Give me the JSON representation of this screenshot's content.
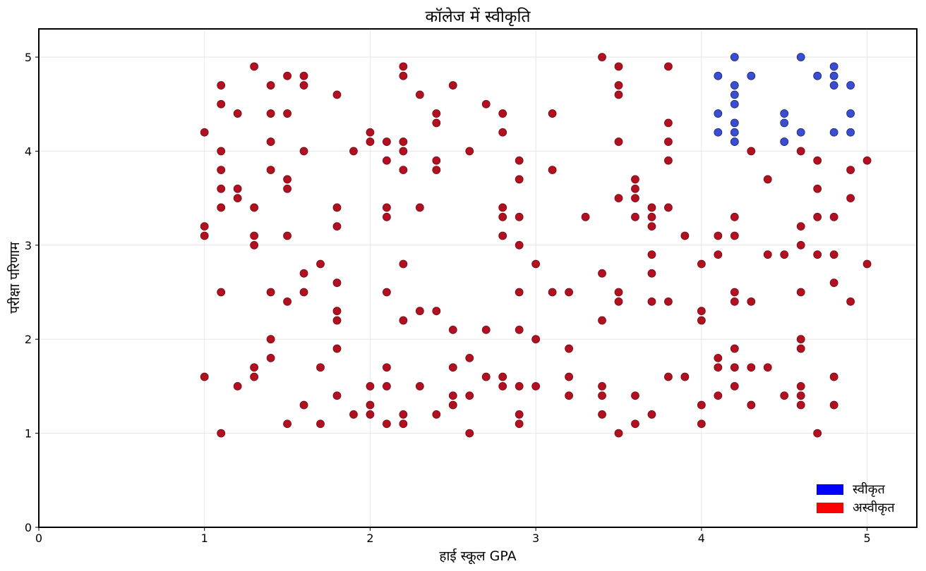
{
  "chart_data": {
    "type": "scatter",
    "title": "कॉलेज में स्वीकृति",
    "xlabel": "हाई स्कूल GPA",
    "ylabel": "परीक्षा परिणाम",
    "xlim": [
      0,
      5.3
    ],
    "ylim": [
      0,
      5.3
    ],
    "x_ticks": [
      0,
      1,
      2,
      3,
      4,
      5
    ],
    "y_ticks": [
      0,
      1,
      2,
      3,
      4,
      5
    ],
    "grid": true,
    "legend_position": "bottom-right",
    "series": [
      {
        "name": "स्वीकृत",
        "color": "#0000ff",
        "marker_color": "#3a4fd0",
        "points": [
          [
            4.1,
            4.8
          ],
          [
            4.1,
            4.4
          ],
          [
            4.1,
            4.2
          ],
          [
            4.2,
            5.0
          ],
          [
            4.2,
            4.7
          ],
          [
            4.2,
            4.6
          ],
          [
            4.2,
            4.5
          ],
          [
            4.2,
            4.3
          ],
          [
            4.2,
            4.2
          ],
          [
            4.2,
            4.1
          ],
          [
            4.3,
            4.8
          ],
          [
            4.5,
            4.4
          ],
          [
            4.5,
            4.3
          ],
          [
            4.5,
            4.1
          ],
          [
            4.6,
            5.0
          ],
          [
            4.6,
            4.2
          ],
          [
            4.7,
            4.8
          ],
          [
            4.8,
            4.9
          ],
          [
            4.8,
            4.8
          ],
          [
            4.8,
            4.7
          ],
          [
            4.8,
            4.2
          ],
          [
            4.9,
            4.7
          ],
          [
            4.9,
            4.4
          ],
          [
            4.9,
            4.2
          ]
        ]
      },
      {
        "name": "अस्वीकृत",
        "color": "#ff0000",
        "marker_color": "#b01020",
        "points": [
          [
            1.0,
            4.2
          ],
          [
            1.0,
            3.2
          ],
          [
            1.0,
            3.1
          ],
          [
            1.0,
            1.6
          ],
          [
            1.1,
            4.7
          ],
          [
            1.1,
            4.5
          ],
          [
            1.1,
            4.0
          ],
          [
            1.1,
            3.8
          ],
          [
            1.1,
            3.6
          ],
          [
            1.1,
            3.4
          ],
          [
            1.1,
            2.5
          ],
          [
            1.1,
            1.0
          ],
          [
            1.2,
            4.4
          ],
          [
            1.2,
            3.6
          ],
          [
            1.2,
            3.5
          ],
          [
            1.2,
            1.5
          ],
          [
            1.3,
            4.9
          ],
          [
            1.3,
            3.4
          ],
          [
            1.3,
            3.1
          ],
          [
            1.3,
            3.0
          ],
          [
            1.3,
            1.7
          ],
          [
            1.3,
            1.6
          ],
          [
            1.4,
            4.7
          ],
          [
            1.4,
            4.4
          ],
          [
            1.4,
            4.1
          ],
          [
            1.4,
            3.8
          ],
          [
            1.4,
            2.5
          ],
          [
            1.4,
            2.0
          ],
          [
            1.4,
            1.8
          ],
          [
            1.5,
            4.8
          ],
          [
            1.5,
            4.4
          ],
          [
            1.5,
            3.7
          ],
          [
            1.5,
            3.6
          ],
          [
            1.5,
            3.1
          ],
          [
            1.5,
            2.4
          ],
          [
            1.5,
            1.1
          ],
          [
            1.6,
            4.8
          ],
          [
            1.6,
            4.7
          ],
          [
            1.6,
            4.0
          ],
          [
            1.6,
            2.7
          ],
          [
            1.6,
            2.5
          ],
          [
            1.6,
            1.3
          ],
          [
            1.7,
            2.8
          ],
          [
            1.7,
            1.7
          ],
          [
            1.7,
            1.1
          ],
          [
            1.8,
            4.6
          ],
          [
            1.8,
            3.4
          ],
          [
            1.8,
            3.2
          ],
          [
            1.8,
            2.6
          ],
          [
            1.8,
            2.3
          ],
          [
            1.8,
            2.2
          ],
          [
            1.8,
            1.9
          ],
          [
            1.8,
            1.4
          ],
          [
            1.9,
            4.0
          ],
          [
            1.9,
            1.2
          ],
          [
            2.0,
            4.2
          ],
          [
            2.0,
            4.1
          ],
          [
            2.0,
            1.5
          ],
          [
            2.0,
            1.3
          ],
          [
            2.0,
            1.2
          ],
          [
            2.1,
            4.1
          ],
          [
            2.1,
            3.9
          ],
          [
            2.1,
            3.4
          ],
          [
            2.1,
            3.3
          ],
          [
            2.1,
            2.5
          ],
          [
            2.1,
            1.7
          ],
          [
            2.1,
            1.5
          ],
          [
            2.1,
            1.1
          ],
          [
            2.2,
            4.9
          ],
          [
            2.2,
            4.8
          ],
          [
            2.2,
            4.1
          ],
          [
            2.2,
            4.0
          ],
          [
            2.2,
            3.8
          ],
          [
            2.2,
            2.8
          ],
          [
            2.2,
            2.2
          ],
          [
            2.2,
            1.2
          ],
          [
            2.2,
            1.1
          ],
          [
            2.3,
            4.6
          ],
          [
            2.3,
            3.4
          ],
          [
            2.3,
            2.3
          ],
          [
            2.3,
            1.5
          ],
          [
            2.4,
            4.4
          ],
          [
            2.4,
            4.3
          ],
          [
            2.4,
            3.9
          ],
          [
            2.4,
            3.8
          ],
          [
            2.4,
            2.3
          ],
          [
            2.4,
            1.2
          ],
          [
            2.5,
            4.7
          ],
          [
            2.5,
            2.1
          ],
          [
            2.5,
            1.7
          ],
          [
            2.5,
            1.4
          ],
          [
            2.5,
            1.3
          ],
          [
            2.6,
            4.0
          ],
          [
            2.6,
            1.8
          ],
          [
            2.6,
            1.4
          ],
          [
            2.6,
            1.0
          ],
          [
            2.7,
            4.5
          ],
          [
            2.7,
            2.1
          ],
          [
            2.7,
            1.6
          ],
          [
            2.8,
            4.4
          ],
          [
            2.8,
            4.2
          ],
          [
            2.8,
            3.4
          ],
          [
            2.8,
            3.3
          ],
          [
            2.8,
            3.1
          ],
          [
            2.8,
            1.6
          ],
          [
            2.8,
            1.5
          ],
          [
            2.9,
            3.9
          ],
          [
            2.9,
            3.7
          ],
          [
            2.9,
            3.3
          ],
          [
            2.9,
            3.0
          ],
          [
            2.9,
            2.5
          ],
          [
            2.9,
            2.1
          ],
          [
            2.9,
            1.5
          ],
          [
            2.9,
            1.2
          ],
          [
            2.9,
            1.1
          ],
          [
            3.0,
            2.8
          ],
          [
            3.0,
            2.0
          ],
          [
            3.0,
            1.5
          ],
          [
            3.1,
            4.4
          ],
          [
            3.1,
            3.8
          ],
          [
            3.1,
            2.5
          ],
          [
            3.2,
            2.5
          ],
          [
            3.2,
            1.9
          ],
          [
            3.2,
            1.6
          ],
          [
            3.2,
            1.4
          ],
          [
            3.3,
            3.3
          ],
          [
            3.4,
            5.0
          ],
          [
            3.4,
            2.7
          ],
          [
            3.4,
            2.2
          ],
          [
            3.4,
            1.5
          ],
          [
            3.4,
            1.4
          ],
          [
            3.4,
            1.2
          ],
          [
            3.5,
            4.9
          ],
          [
            3.5,
            4.7
          ],
          [
            3.5,
            4.6
          ],
          [
            3.5,
            4.1
          ],
          [
            3.5,
            3.5
          ],
          [
            3.5,
            2.5
          ],
          [
            3.5,
            2.4
          ],
          [
            3.5,
            1.0
          ],
          [
            3.6,
            3.7
          ],
          [
            3.6,
            3.6
          ],
          [
            3.6,
            3.5
          ],
          [
            3.6,
            3.3
          ],
          [
            3.6,
            1.4
          ],
          [
            3.6,
            1.1
          ],
          [
            3.7,
            3.4
          ],
          [
            3.7,
            3.3
          ],
          [
            3.7,
            3.2
          ],
          [
            3.7,
            2.9
          ],
          [
            3.7,
            2.7
          ],
          [
            3.7,
            2.4
          ],
          [
            3.7,
            1.2
          ],
          [
            3.8,
            4.9
          ],
          [
            3.8,
            4.3
          ],
          [
            3.8,
            4.1
          ],
          [
            3.8,
            3.9
          ],
          [
            3.8,
            3.4
          ],
          [
            3.8,
            2.4
          ],
          [
            3.8,
            1.6
          ],
          [
            3.9,
            3.1
          ],
          [
            3.9,
            1.6
          ],
          [
            4.0,
            2.8
          ],
          [
            4.0,
            2.3
          ],
          [
            4.0,
            2.2
          ],
          [
            4.0,
            1.3
          ],
          [
            4.0,
            1.1
          ],
          [
            4.1,
            3.1
          ],
          [
            4.1,
            2.9
          ],
          [
            4.1,
            1.8
          ],
          [
            4.1,
            1.7
          ],
          [
            4.1,
            1.4
          ],
          [
            4.2,
            3.3
          ],
          [
            4.2,
            3.1
          ],
          [
            4.2,
            2.5
          ],
          [
            4.2,
            2.4
          ],
          [
            4.2,
            1.9
          ],
          [
            4.2,
            1.7
          ],
          [
            4.2,
            1.5
          ],
          [
            4.3,
            4.0
          ],
          [
            4.3,
            2.4
          ],
          [
            4.3,
            1.7
          ],
          [
            4.3,
            1.3
          ],
          [
            4.4,
            3.7
          ],
          [
            4.4,
            2.9
          ],
          [
            4.4,
            1.7
          ],
          [
            4.5,
            2.9
          ],
          [
            4.5,
            1.4
          ],
          [
            4.6,
            4.0
          ],
          [
            4.6,
            3.2
          ],
          [
            4.6,
            3.0
          ],
          [
            4.6,
            2.5
          ],
          [
            4.6,
            2.0
          ],
          [
            4.6,
            1.9
          ],
          [
            4.6,
            1.5
          ],
          [
            4.6,
            1.4
          ],
          [
            4.6,
            1.3
          ],
          [
            4.7,
            3.9
          ],
          [
            4.7,
            3.6
          ],
          [
            4.7,
            3.3
          ],
          [
            4.7,
            2.9
          ],
          [
            4.7,
            1.0
          ],
          [
            4.8,
            3.3
          ],
          [
            4.8,
            2.9
          ],
          [
            4.8,
            2.6
          ],
          [
            4.8,
            1.6
          ],
          [
            4.8,
            1.3
          ],
          [
            4.9,
            3.8
          ],
          [
            4.9,
            3.5
          ],
          [
            4.9,
            2.4
          ],
          [
            5.0,
            3.9
          ],
          [
            5.0,
            2.8
          ]
        ]
      }
    ]
  }
}
